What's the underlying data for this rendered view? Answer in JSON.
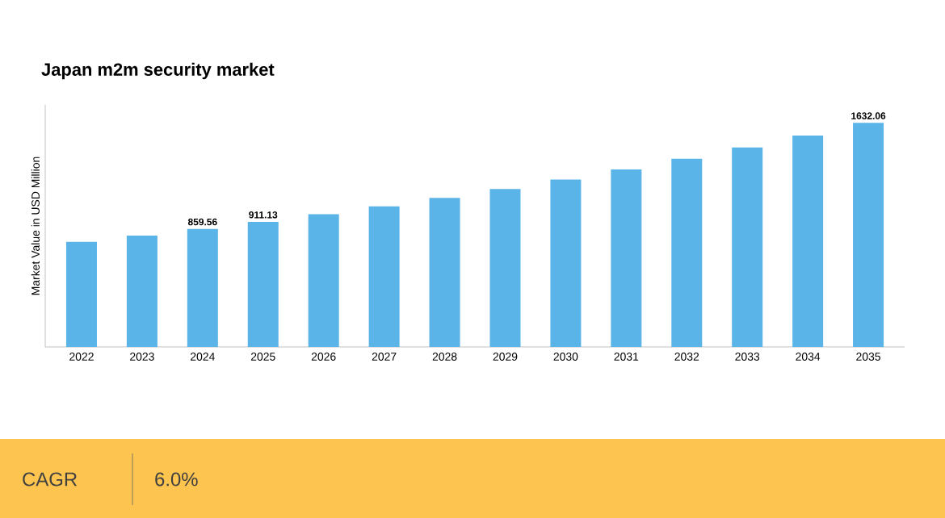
{
  "chart_data": {
    "type": "bar",
    "title": "Japan m2m security market",
    "ylabel": "Market Value in USD Million",
    "categories": [
      "2022",
      "2023",
      "2024",
      "2025",
      "2026",
      "2027",
      "2028",
      "2029",
      "2030",
      "2031",
      "2032",
      "2033",
      "2034",
      "2035"
    ],
    "values": [
      765,
      811,
      859.56,
      911.13,
      966,
      1024,
      1085,
      1150,
      1219,
      1292,
      1370,
      1452,
      1539,
      1632.06
    ],
    "value_labels": [
      null,
      null,
      "859.56",
      "911.13",
      null,
      null,
      null,
      null,
      null,
      null,
      null,
      null,
      null,
      "1632.06"
    ],
    "color": "#5ab4e8",
    "annotations": [
      "CAGR",
      "6.0%"
    ]
  }
}
